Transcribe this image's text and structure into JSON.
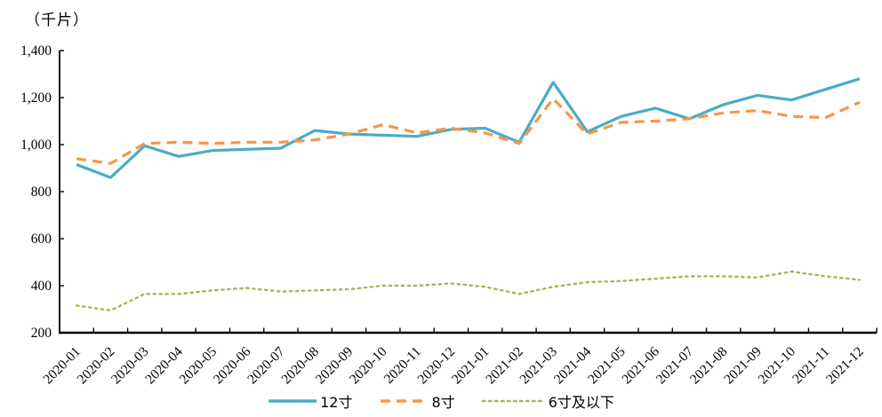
{
  "chart_data": {
    "type": "line",
    "unit_label": "（千片）",
    "grid": false,
    "legend_position": "bottom",
    "categories": [
      "2020-01",
      "2020-02",
      "2020-03",
      "2020-04",
      "2020-05",
      "2020-06",
      "2020-07",
      "2020-08",
      "2020-09",
      "2020-10",
      "2020-11",
      "2020-12",
      "2021-01",
      "2021-02",
      "2021-03",
      "2021-04",
      "2021-05",
      "2021-06",
      "2021-07",
      "2021-08",
      "2021-09",
      "2021-10",
      "2021-11",
      "2021-12"
    ],
    "series": [
      {
        "name": "12寸",
        "color": "#4BACC6",
        "style": "solid",
        "values": [
          915,
          860,
          995,
          950,
          975,
          980,
          985,
          1060,
          1045,
          1040,
          1035,
          1065,
          1070,
          1010,
          1265,
          1055,
          1120,
          1155,
          1110,
          1170,
          1210,
          1190,
          1235,
          1280
        ]
      },
      {
        "name": "8寸",
        "color": "#F79646",
        "style": "dashed",
        "values": [
          940,
          920,
          1005,
          1010,
          1005,
          1010,
          1010,
          1020,
          1045,
          1085,
          1050,
          1070,
          1050,
          1005,
          1195,
          1045,
          1095,
          1100,
          1110,
          1135,
          1145,
          1120,
          1115,
          1180
        ]
      },
      {
        "name": "6寸及以下",
        "color": "#9BBB59",
        "style": "dotted",
        "values": [
          315,
          295,
          365,
          365,
          380,
          390,
          375,
          380,
          385,
          400,
          400,
          410,
          395,
          365,
          395,
          415,
          420,
          430,
          440,
          440,
          435,
          460,
          440,
          425
        ]
      }
    ],
    "y_axis": {
      "min": 200,
      "max": 1400,
      "tick_step": 200,
      "ticks": [
        {
          "value": 200,
          "label": "200"
        },
        {
          "value": 400,
          "label": "400"
        },
        {
          "value": 600,
          "label": "600"
        },
        {
          "value": 800,
          "label": "800"
        },
        {
          "value": 1000,
          "label": "1,000"
        },
        {
          "value": 1200,
          "label": "1,200"
        },
        {
          "value": 1400,
          "label": "1,400"
        }
      ]
    }
  }
}
